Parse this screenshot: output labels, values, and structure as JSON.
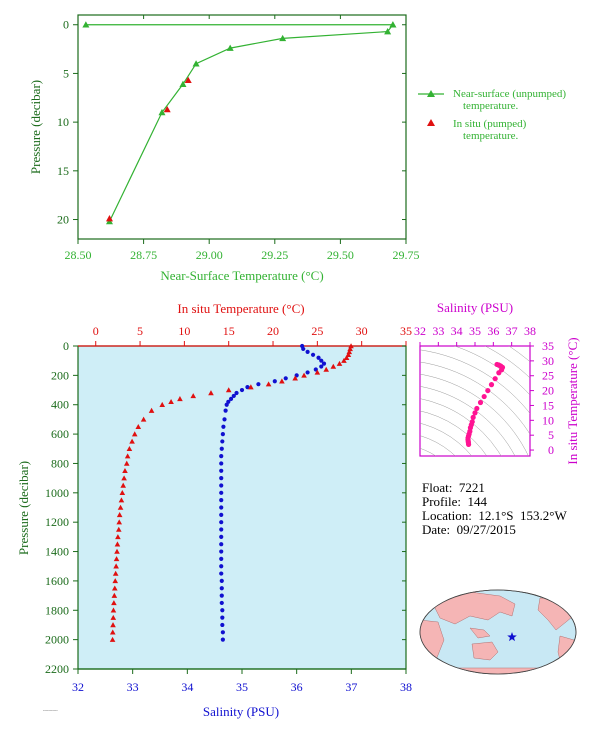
{
  "colors": {
    "green": "#33b233",
    "red": "#e01010",
    "blue": "#1010d0",
    "magenta": "#cc00cc",
    "pink": "#ff1493",
    "axis_dark": "#1b6b1b",
    "panel_bg": "#cfeef7",
    "land": "#f5b5b5",
    "ocean": "#c8e8f4"
  },
  "info": {
    "float": "Float:  7221",
    "profile": "Profile:  144",
    "location": "Location:  12.1°S  153.2°W",
    "date": "Date:  09/27/2015"
  },
  "footer": "-----------",
  "chart_data": [
    {
      "type": "line",
      "title": "",
      "xlabel": "Near-Surface Temperature (°C)",
      "ylabel": "Pressure (decibar)",
      "xlim": [
        28.5,
        29.75
      ],
      "ylim": [
        22,
        -1
      ],
      "x_ticks": [
        "28.50",
        "28.75",
        "29.00",
        "29.25",
        "29.50",
        "29.75"
      ],
      "y_ticks": [
        "0",
        "5",
        "10",
        "15",
        "20"
      ],
      "legend_position": "right",
      "series": [
        {
          "name": "Near-surface (unpumped) temperature.",
          "marker": "triangle",
          "color": "green",
          "points": [
            [
              29.7,
              0.0
            ],
            [
              28.53,
              0.0
            ],
            [
              29.7,
              0.0
            ],
            [
              29.68,
              0.7
            ],
            [
              29.28,
              1.4
            ],
            [
              29.08,
              2.4
            ],
            [
              28.95,
              4.0
            ],
            [
              28.9,
              6.1
            ],
            [
              28.82,
              9.0
            ],
            [
              28.62,
              20.2
            ]
          ]
        },
        {
          "name": "In situ (pumped) temperature.",
          "marker": "triangle",
          "color": "red",
          "points": [
            [
              28.92,
              5.7
            ],
            [
              28.84,
              8.7
            ],
            [
              28.62,
              19.9
            ]
          ]
        }
      ],
      "legend": [
        "Near-surface (unpumped)",
        "temperature.",
        "In situ (pumped)",
        "temperature."
      ]
    },
    {
      "type": "scatter",
      "xlabel_top": "In situ Temperature (°C)",
      "xlabel_bottom": "Salinity (PSU)",
      "ylabel": "Pressure (decibar)",
      "temp_xlim": [
        -2,
        35
      ],
      "sal_xlim": [
        32,
        38
      ],
      "ylim": [
        2200,
        0
      ],
      "temp_ticks": [
        "0",
        "5",
        "10",
        "15",
        "20",
        "25",
        "30",
        "35"
      ],
      "sal_ticks": [
        "32",
        "33",
        "34",
        "35",
        "36",
        "37",
        "38"
      ],
      "y_ticks": [
        "0",
        "200",
        "400",
        "600",
        "800",
        "1000",
        "1200",
        "1400",
        "1600",
        "1800",
        "2000",
        "2200"
      ],
      "series": [
        {
          "name": "In situ Temperature",
          "color": "red",
          "marker": "triangle",
          "points": [
            [
              28.8,
              0
            ],
            [
              28.7,
              20
            ],
            [
              28.6,
              40
            ],
            [
              28.5,
              60
            ],
            [
              28.3,
              80
            ],
            [
              28.0,
              100
            ],
            [
              27.5,
              120
            ],
            [
              26.8,
              140
            ],
            [
              26.0,
              160
            ],
            [
              25.0,
              180
            ],
            [
              23.5,
              200
            ],
            [
              22.5,
              220
            ],
            [
              21.0,
              240
            ],
            [
              19.5,
              260
            ],
            [
              17.5,
              280
            ],
            [
              15.0,
              300
            ],
            [
              13.0,
              320
            ],
            [
              11.0,
              340
            ],
            [
              9.5,
              360
            ],
            [
              8.5,
              380
            ],
            [
              7.5,
              400
            ],
            [
              6.3,
              440
            ],
            [
              5.4,
              500
            ],
            [
              4.8,
              550
            ],
            [
              4.4,
              600
            ],
            [
              4.1,
              650
            ],
            [
              3.8,
              700
            ],
            [
              3.6,
              750
            ],
            [
              3.5,
              800
            ],
            [
              3.3,
              850
            ],
            [
              3.2,
              900
            ],
            [
              3.1,
              950
            ],
            [
              3.0,
              1000
            ],
            [
              2.9,
              1050
            ],
            [
              2.8,
              1100
            ],
            [
              2.7,
              1150
            ],
            [
              2.65,
              1200
            ],
            [
              2.6,
              1250
            ],
            [
              2.5,
              1300
            ],
            [
              2.45,
              1350
            ],
            [
              2.4,
              1400
            ],
            [
              2.35,
              1450
            ],
            [
              2.3,
              1500
            ],
            [
              2.25,
              1550
            ],
            [
              2.2,
              1600
            ],
            [
              2.15,
              1650
            ],
            [
              2.1,
              1700
            ],
            [
              2.05,
              1750
            ],
            [
              2.0,
              1800
            ],
            [
              1.98,
              1850
            ],
            [
              1.95,
              1900
            ],
            [
              1.92,
              1950
            ],
            [
              1.9,
              2000
            ]
          ]
        },
        {
          "name": "Salinity",
          "color": "blue",
          "marker": "circle",
          "points": [
            [
              36.1,
              0
            ],
            [
              36.12,
              20
            ],
            [
              36.2,
              40
            ],
            [
              36.3,
              60
            ],
            [
              36.4,
              80
            ],
            [
              36.45,
              100
            ],
            [
              36.5,
              120
            ],
            [
              36.45,
              140
            ],
            [
              36.35,
              160
            ],
            [
              36.2,
              180
            ],
            [
              36.0,
              200
            ],
            [
              35.8,
              220
            ],
            [
              35.6,
              240
            ],
            [
              35.3,
              260
            ],
            [
              35.1,
              280
            ],
            [
              35.0,
              300
            ],
            [
              34.9,
              320
            ],
            [
              34.85,
              340
            ],
            [
              34.8,
              360
            ],
            [
              34.75,
              380
            ],
            [
              34.72,
              400
            ],
            [
              34.7,
              440
            ],
            [
              34.68,
              500
            ],
            [
              34.66,
              550
            ],
            [
              34.65,
              600
            ],
            [
              34.64,
              650
            ],
            [
              34.63,
              700
            ],
            [
              34.62,
              750
            ],
            [
              34.62,
              800
            ],
            [
              34.62,
              850
            ],
            [
              34.62,
              900
            ],
            [
              34.62,
              950
            ],
            [
              34.62,
              1000
            ],
            [
              34.62,
              1050
            ],
            [
              34.62,
              1100
            ],
            [
              34.62,
              1150
            ],
            [
              34.62,
              1200
            ],
            [
              34.62,
              1250
            ],
            [
              34.62,
              1300
            ],
            [
              34.62,
              1350
            ],
            [
              34.62,
              1400
            ],
            [
              34.62,
              1450
            ],
            [
              34.62,
              1500
            ],
            [
              34.62,
              1550
            ],
            [
              34.63,
              1600
            ],
            [
              34.63,
              1650
            ],
            [
              34.63,
              1700
            ],
            [
              34.63,
              1750
            ],
            [
              34.64,
              1800
            ],
            [
              34.64,
              1850
            ],
            [
              34.64,
              1900
            ],
            [
              34.65,
              1950
            ],
            [
              34.65,
              2000
            ]
          ]
        }
      ]
    },
    {
      "type": "scatter",
      "xlabel": "Salinity (PSU)",
      "ylabel": "In situ Temperature (°C)",
      "xlim": [
        32,
        38
      ],
      "ylim": [
        -2,
        35
      ],
      "x_ticks": [
        "32",
        "33",
        "34",
        "35",
        "36",
        "37",
        "38"
      ],
      "y_ticks": [
        "0",
        "5",
        "10",
        "15",
        "20",
        "25",
        "30",
        "35"
      ],
      "series": [
        {
          "name": "T-S",
          "color": "pink",
          "marker": "circle",
          "points": [
            [
              34.65,
              1.9
            ],
            [
              34.64,
              2.5
            ],
            [
              34.63,
              3.0
            ],
            [
              34.62,
              3.5
            ],
            [
              34.62,
              4.1
            ],
            [
              34.65,
              4.8
            ],
            [
              34.68,
              5.4
            ],
            [
              34.72,
              6.3
            ],
            [
              34.75,
              7.5
            ],
            [
              34.8,
              8.5
            ],
            [
              34.85,
              9.5
            ],
            [
              34.9,
              11.0
            ],
            [
              35.0,
              12.5
            ],
            [
              35.1,
              14.0
            ],
            [
              35.3,
              16.0
            ],
            [
              35.5,
              18.0
            ],
            [
              35.7,
              20.0
            ],
            [
              35.9,
              22.0
            ],
            [
              36.1,
              24.0
            ],
            [
              36.3,
              26.0
            ],
            [
              36.45,
              27.0
            ],
            [
              36.5,
              27.8
            ],
            [
              36.4,
              28.3
            ],
            [
              36.3,
              28.6
            ],
            [
              36.2,
              28.8
            ]
          ]
        }
      ]
    },
    {
      "type": "map",
      "marker": {
        "lat": -12.1,
        "lon": -153.2,
        "symbol": "star"
      }
    }
  ]
}
